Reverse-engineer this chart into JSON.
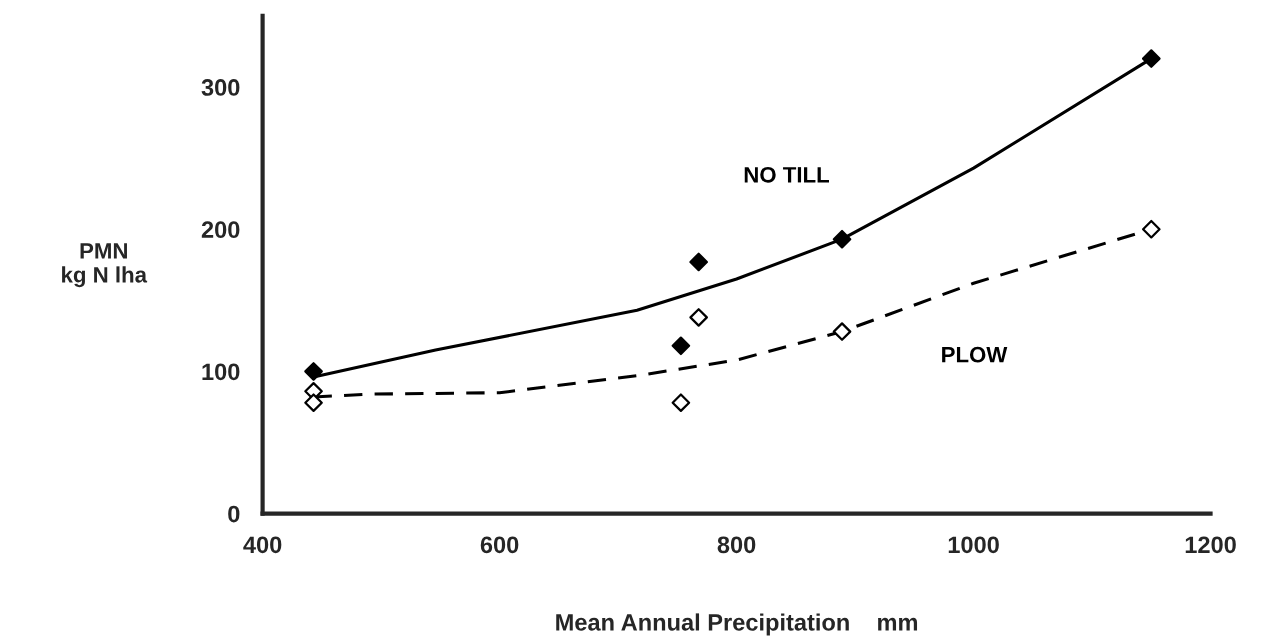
{
  "chart_data": {
    "type": "scatter",
    "xlabel": "Mean Annual Precipitation    mm",
    "ylabel": "PMN\nkg N lha",
    "xlim": [
      400,
      1200
    ],
    "ylim": [
      0,
      350
    ],
    "xticks": [
      400,
      600,
      800,
      1000,
      1200
    ],
    "yticks": [
      0,
      100,
      200,
      300
    ],
    "grid": false,
    "legend": false,
    "series": [
      {
        "type": "line",
        "name": "NO TILL",
        "color": "#000000",
        "line_style": "solid",
        "marker": "none",
        "x": [
          443,
          546,
          716,
          800,
          889,
          1000,
          1150
        ],
        "values": [
          96,
          115,
          143,
          165,
          193,
          243,
          320
        ]
      },
      {
        "type": "line",
        "name": "PLOW",
        "color": "#000000",
        "line_style": "dashed",
        "marker": "none",
        "x": [
          443,
          489,
          600,
          716,
          800,
          889,
          1000,
          1150
        ],
        "values": [
          82,
          84,
          85,
          97,
          108,
          128,
          162,
          200
        ]
      },
      {
        "color": "#000000",
        "marker": "diamond",
        "x": [
          443,
          753,
          768,
          889,
          1150
        ],
        "values": [
          100,
          118,
          177,
          193,
          320
        ]
      },
      {
        "color": "#ffffff",
        "marker": "diamond",
        "x": [
          443,
          443,
          753,
          768,
          889,
          1150
        ],
        "values": [
          86,
          78,
          78,
          138,
          128,
          200
        ]
      }
    ]
  }
}
